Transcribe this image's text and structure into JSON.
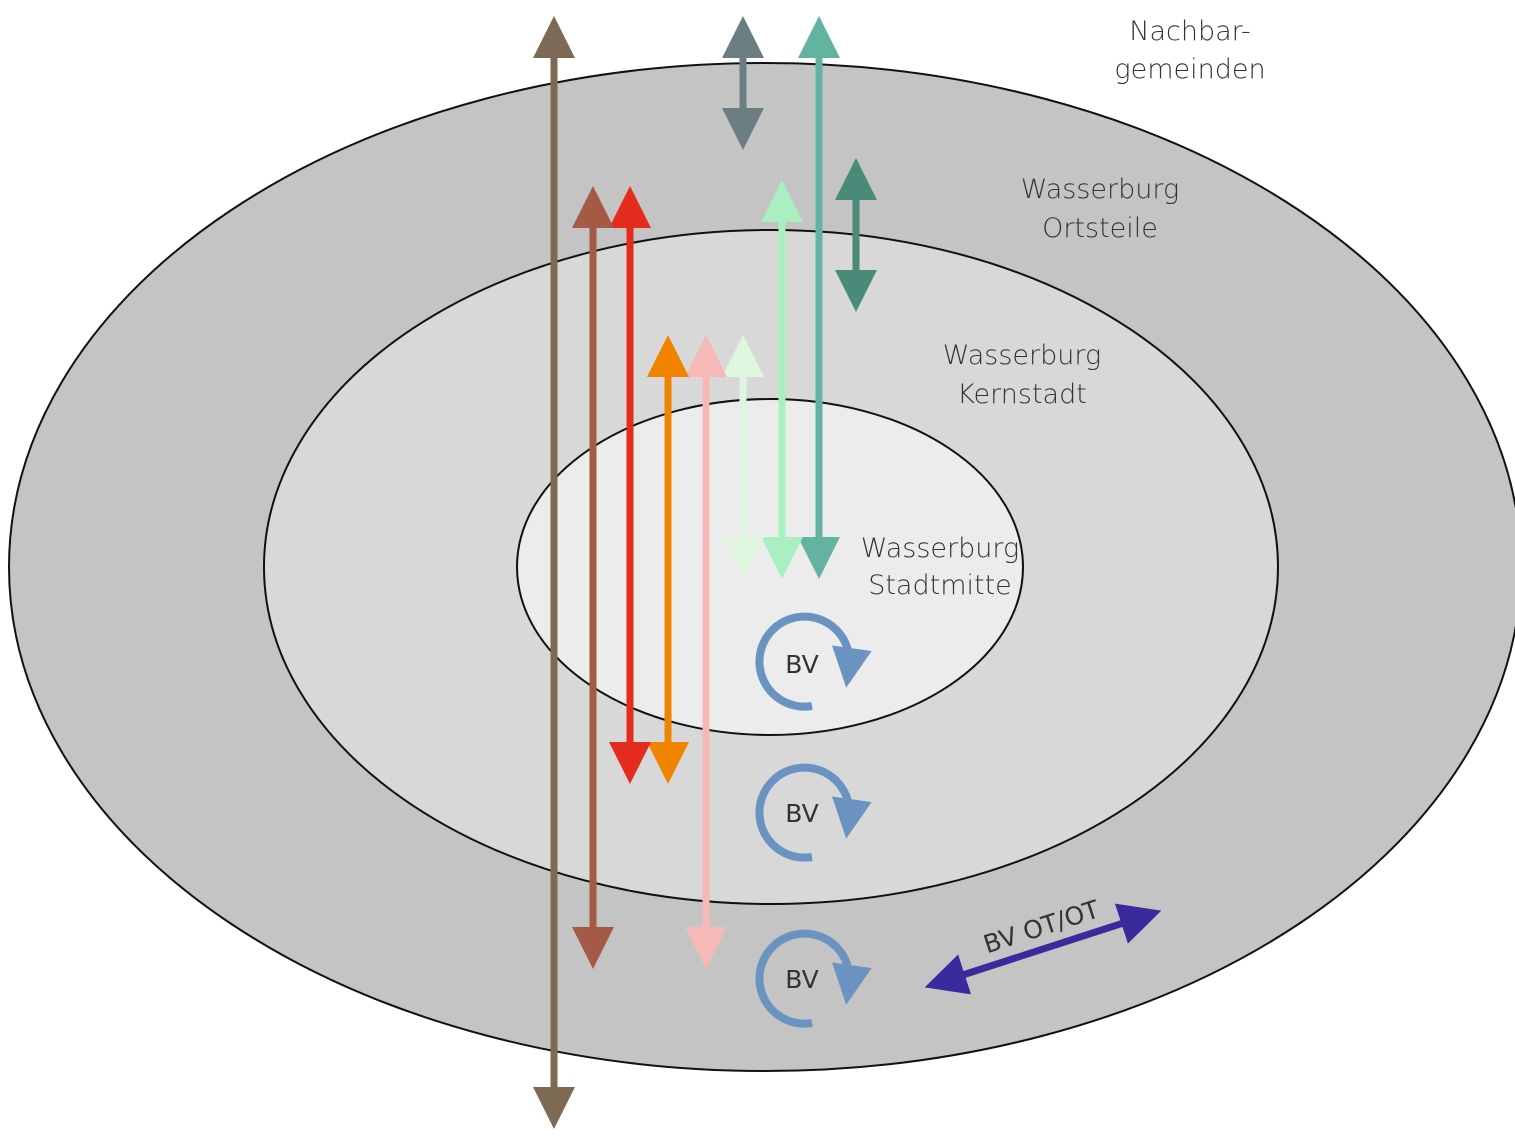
{
  "zones": {
    "nachbar": {
      "line1": "Nachbar-",
      "line2": "gemeinden",
      "fill": "#ffffff"
    },
    "ortsteile": {
      "line1": "Wasserburg",
      "line2": "Ortsteile",
      "fill": "#c4c4c4"
    },
    "kernstadt": {
      "line1": "Wasserburg",
      "line2": "Kernstadt",
      "fill": "#d8d8d8"
    },
    "stadtmitte": {
      "line1": "Wasserburg",
      "line2": "Stadtmitte",
      "fill": "#ececec"
    }
  },
  "cycles": {
    "stadtmitte": {
      "label": "BV"
    },
    "kernstadt": {
      "label": "BV"
    },
    "ortsteile": {
      "label": "BV"
    }
  },
  "between_ortsteile": {
    "label": "BV OT/OT",
    "color": "#3a2b9c"
  },
  "colors": {
    "outline": "#111111",
    "cycle": "#6a93c2",
    "arrow_brown_grey": "#7c6a55",
    "arrow_slate": "#6c7d82",
    "arrow_teal": "#63b3a0",
    "arrow_dark_green": "#4a8a78",
    "arrow_light_green": "#a9efc2",
    "arrow_pale_green": "#dff5dd",
    "arrow_pink": "#f7b8b8",
    "arrow_orange": "#f08300",
    "arrow_red": "#e32b1e",
    "arrow_rust": "#a45a45"
  }
}
